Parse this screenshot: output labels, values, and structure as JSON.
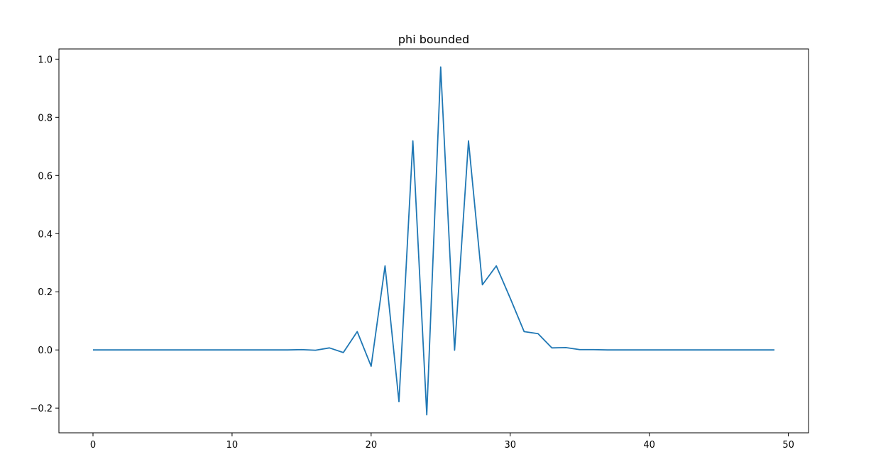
{
  "chart_data": {
    "type": "line",
    "title": "phi bounded",
    "xlabel": "",
    "ylabel": "",
    "xlim": [
      -2.45,
      51.45
    ],
    "ylim": [
      -0.285,
      1.035
    ],
    "xticks": [
      0,
      10,
      20,
      30,
      40,
      50
    ],
    "xtick_labels": [
      "0",
      "10",
      "20",
      "30",
      "40",
      "50"
    ],
    "yticks": [
      -0.2,
      0.0,
      0.2,
      0.4,
      0.6,
      0.8,
      1.0
    ],
    "ytick_labels": [
      "−0.2",
      "0.0",
      "0.2",
      "0.4",
      "0.6",
      "0.8",
      "1.0"
    ],
    "grid": false,
    "legend": "none",
    "series": [
      {
        "color": "#1f77b4",
        "x": [
          0,
          1,
          2,
          3,
          4,
          5,
          6,
          7,
          8,
          9,
          10,
          11,
          12,
          13,
          14,
          15,
          16,
          17,
          18,
          19,
          20,
          21,
          22,
          23,
          24,
          25,
          26,
          27,
          28,
          29,
          30,
          31,
          32,
          33,
          34,
          35,
          36,
          37,
          38,
          39,
          40,
          41,
          42,
          43,
          44,
          45,
          46,
          47,
          48,
          49
        ],
        "y": [
          0,
          0,
          0,
          0,
          0,
          0,
          0,
          0,
          0,
          0,
          0,
          0,
          0,
          0,
          0,
          0.001,
          -0.001,
          0.007,
          -0.009,
          0.063,
          -0.056,
          0.289,
          -0.178,
          0.719,
          -0.223,
          0.973,
          -0.001,
          0.719,
          0.224,
          0.289,
          0.178,
          0.063,
          0.056,
          0.007,
          0.008,
          0.001,
          0.001,
          0,
          0,
          0,
          0,
          0,
          0,
          0,
          0,
          0,
          0,
          0,
          0,
          0
        ]
      }
    ]
  }
}
